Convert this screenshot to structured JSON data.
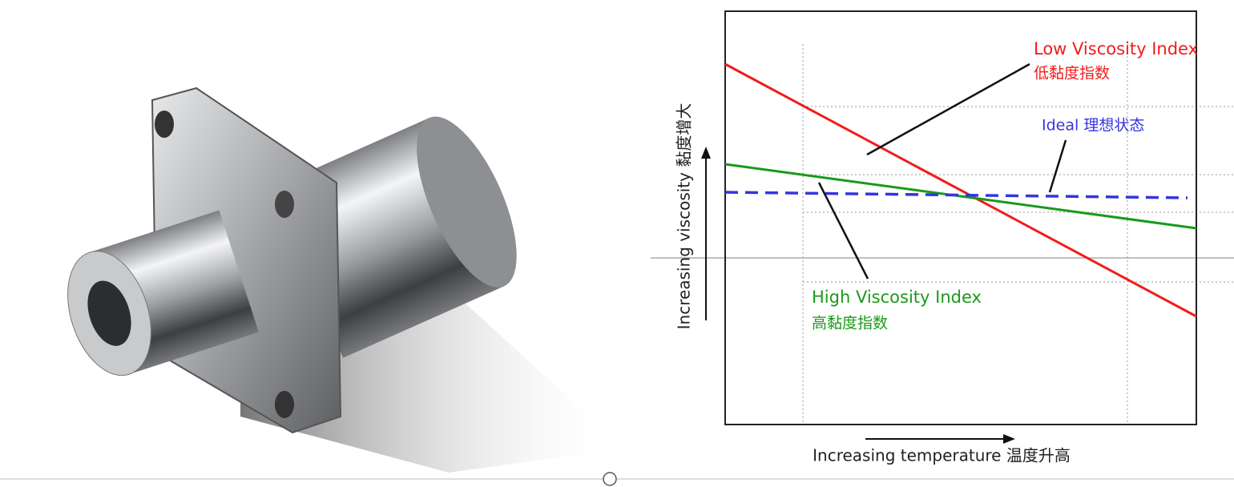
{
  "diagram": {
    "y_axis_label": "Increasing viscosity 黏度增大",
    "x_axis_label": "Increasing temperature 温度升高",
    "low_vi": {
      "label": "Low Viscosity Index",
      "label_cn": "低黏度指数"
    },
    "ideal": {
      "label": "Ideal 理想状态"
    },
    "high_vi": {
      "label": "High Viscosity Index",
      "label_cn": "高黏度指数"
    }
  }
}
